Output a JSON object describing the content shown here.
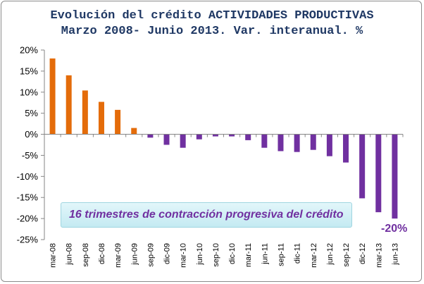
{
  "title_lines": [
    "Evolución del crédito ACTIVIDADES PRODUCTIVAS",
    "Marzo 2008- Junio 2013. Var. interanual. %"
  ],
  "annotation": "16 trimestres de contracción progresiva del crédito",
  "last_value_label": "-20%",
  "colors": {
    "positive": "#e46c0a",
    "negative": "#7030a0",
    "title": "#1f3864",
    "axis_text": "#000000"
  },
  "chart_data": {
    "type": "bar",
    "title": "Evolución del crédito ACTIVIDADES PRODUCTIVAS Marzo 2008- Junio 2013. Var. interanual. %",
    "xlabel": "",
    "ylabel": "",
    "ylim": [
      -25,
      20
    ],
    "yticks": [
      20,
      15,
      10,
      5,
      0,
      -5,
      -10,
      -15,
      -20,
      -25
    ],
    "ytick_labels": [
      "20%",
      "15%",
      "10%",
      "5%",
      "0%",
      "-5%",
      "-10%",
      "-15%",
      "-20%",
      "-25%"
    ],
    "grid": false,
    "legend": "none",
    "categories": [
      "mar-08",
      "jun-08",
      "sep-08",
      "dic-08",
      "mar-09",
      "jun-09",
      "sep-09",
      "dic-09",
      "mar-10",
      "jun-10",
      "sep-10",
      "dic-10",
      "mar-11",
      "jun-11",
      "sep-11",
      "dic-11",
      "mar-12",
      "jun-12",
      "sep-12",
      "dic-12",
      "mar-13",
      "jun-13"
    ],
    "values": [
      18.0,
      14.0,
      10.4,
      7.7,
      5.8,
      1.5,
      -0.8,
      -2.5,
      -3.2,
      -1.2,
      -0.5,
      -0.5,
      -1.4,
      -3.2,
      -4.0,
      -4.2,
      -3.7,
      -5.2,
      -6.7,
      -15.2,
      -18.5,
      -20.0
    ]
  }
}
